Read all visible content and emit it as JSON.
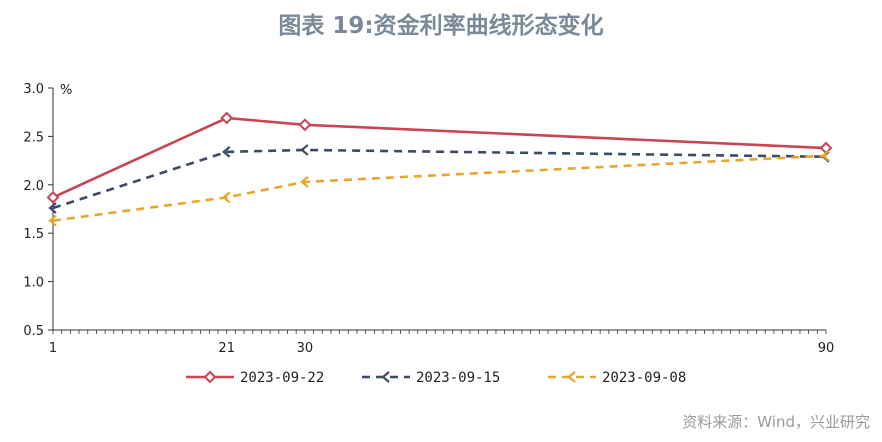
{
  "title": "图表 19:资金利率曲线形态变化",
  "source": "资料来源：Wind，兴业研究",
  "chart_data": {
    "type": "line",
    "title": "图表 19:资金利率曲线形态变化",
    "x": [
      1,
      21,
      30,
      90
    ],
    "xticks": [
      "1",
      "21",
      "30",
      "90"
    ],
    "yticks": [
      "0.5",
      "1.0",
      "1.5",
      "2.0",
      "2.5",
      "3.0"
    ],
    "ylim": [
      0.5,
      3.0
    ],
    "xlim": [
      1,
      90
    ],
    "yunit": "%",
    "grid": false,
    "legend_position": "bottom",
    "series": [
      {
        "name": "2023-09-22",
        "values": [
          1.87,
          2.69,
          2.62,
          2.38
        ],
        "color": "#c94455",
        "style": "solid"
      },
      {
        "name": "2023-09-15",
        "values": [
          1.76,
          2.34,
          2.36,
          2.29
        ],
        "color": "#3d4a64",
        "style": "dashed"
      },
      {
        "name": "2023-09-08",
        "values": [
          1.63,
          1.87,
          2.03,
          2.3
        ],
        "color": "#e8a530",
        "style": "dashed"
      }
    ]
  }
}
